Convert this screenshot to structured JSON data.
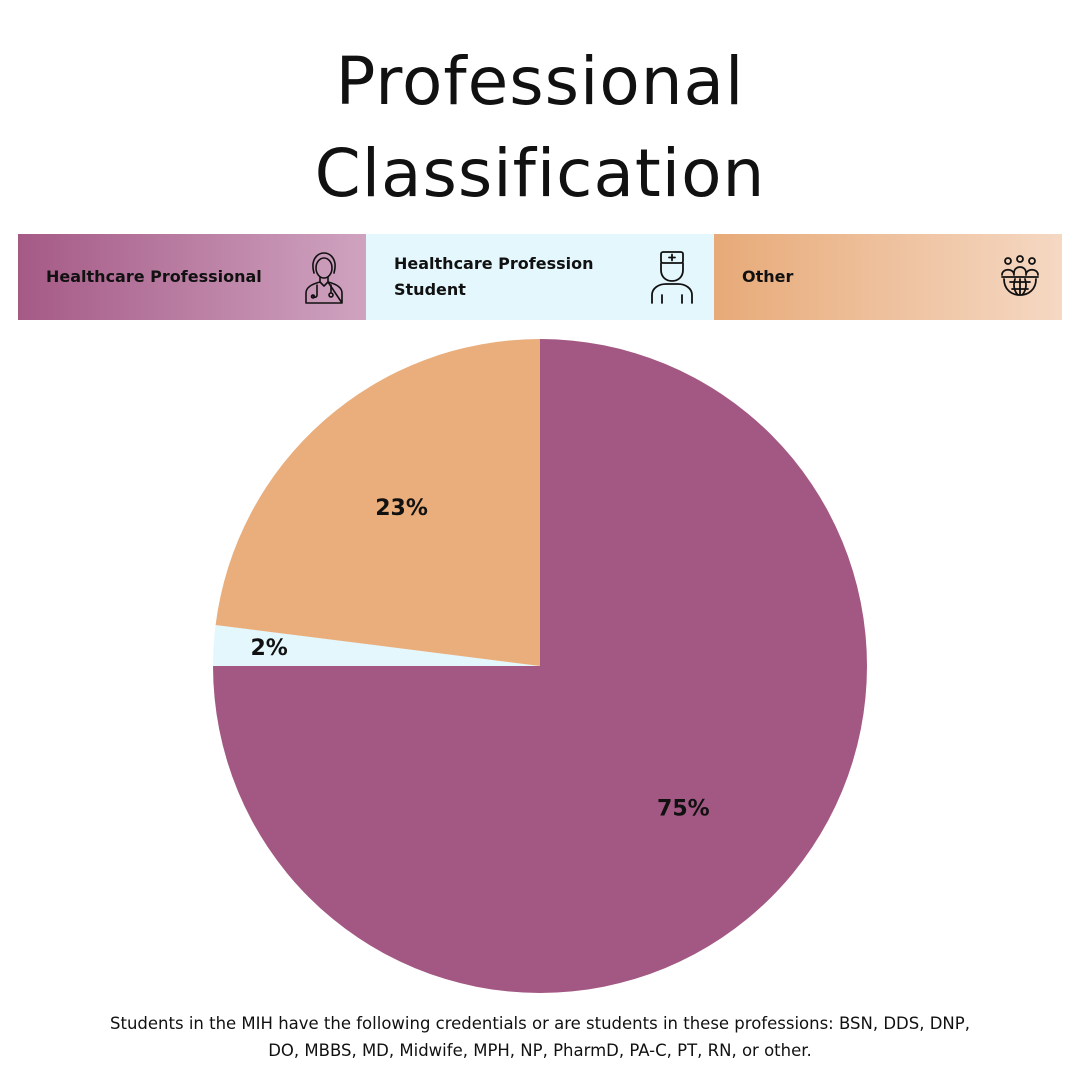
{
  "title_line1": "Professional",
  "title_line2": "Classification",
  "footnote": "Students in the MIH have the following credentials or are students in these professions: BSN, DDS, DNP, DO, MBBS, MD, Midwife, MPH, NP, PharmD, PA-C, PT, RN, or other.",
  "legend": [
    {
      "label": "Healthcare Professional",
      "icon": "female-doctor-icon"
    },
    {
      "label": "Healthcare Profession Student",
      "icon": "medical-student-icon"
    },
    {
      "label": "Other",
      "icon": "people-globe-icon"
    }
  ],
  "chart_data": {
    "type": "pie",
    "categories": [
      "Healthcare Professional",
      "Healthcare Profession Student",
      "Other"
    ],
    "values": [
      75,
      2,
      23
    ],
    "value_labels": [
      "75%",
      "2%",
      "23%"
    ],
    "colors": [
      "#a35883",
      "#e3f7fc",
      "#e9ae7c"
    ],
    "start_angle": "12 o'clock",
    "direction": "clockwise",
    "legend_position": "top"
  }
}
